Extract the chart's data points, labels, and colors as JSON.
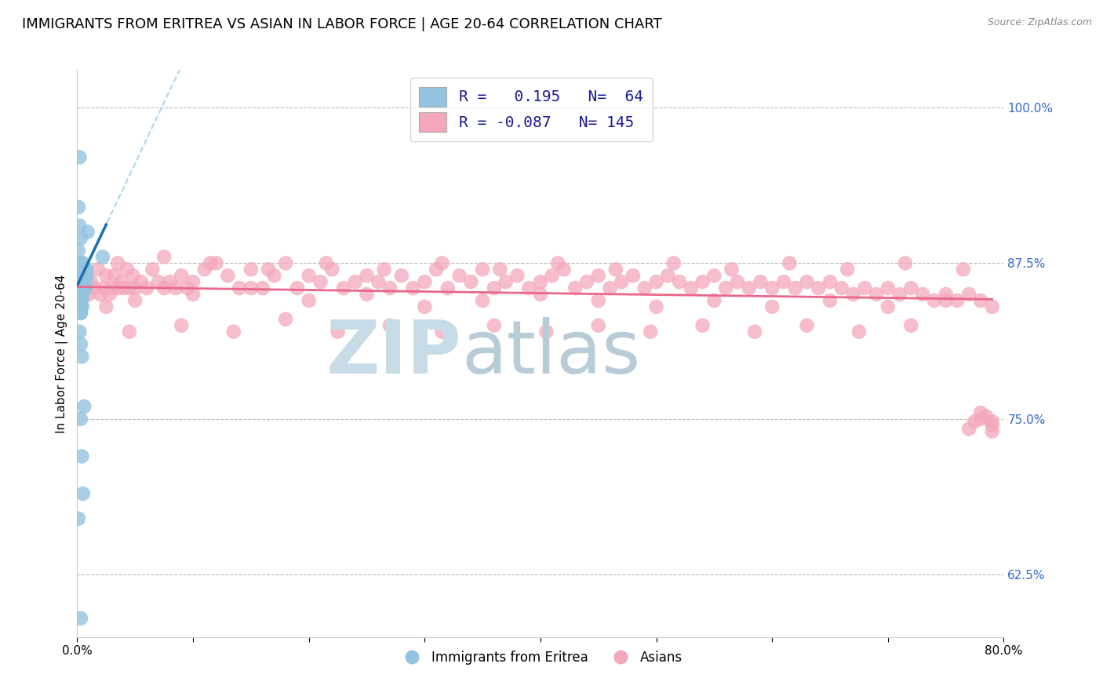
{
  "title": "IMMIGRANTS FROM ERITREA VS ASIAN IN LABOR FORCE | AGE 20-64 CORRELATION CHART",
  "source": "Source: ZipAtlas.com",
  "ylabel": "In Labor Force | Age 20-64",
  "xlim": [
    0.0,
    0.8
  ],
  "ylim": [
    0.575,
    1.03
  ],
  "yticks": [
    0.625,
    0.75,
    0.875,
    1.0
  ],
  "ytick_labels": [
    "62.5%",
    "75.0%",
    "87.5%",
    "100.0%"
  ],
  "xticks": [
    0.0,
    0.1,
    0.2,
    0.3,
    0.4,
    0.5,
    0.6,
    0.7,
    0.8
  ],
  "xtick_labels": [
    "0.0%",
    "",
    "",
    "",
    "",
    "",
    "",
    "",
    "80.0%"
  ],
  "legend_R1": "0.195",
  "legend_N1": "64",
  "legend_R2": "-0.087",
  "legend_N2": "145",
  "blue_color": "#93c4e0",
  "pink_color": "#f4a7bb",
  "blue_line_color": "#1a6faf",
  "pink_line_color": "#e8678a",
  "watermark_zip_color": "#c8dce8",
  "watermark_atlas_color": "#b8ccd8",
  "title_fontsize": 13,
  "axis_label_fontsize": 11,
  "tick_fontsize": 11,
  "ytick_color": "#3366cc",
  "blue_scatter_x": [
    0.001,
    0.001,
    0.001,
    0.001,
    0.002,
    0.002,
    0.002,
    0.002,
    0.002,
    0.003,
    0.003,
    0.003,
    0.003,
    0.003,
    0.003,
    0.003,
    0.004,
    0.004,
    0.004,
    0.004,
    0.004,
    0.004,
    0.005,
    0.005,
    0.005,
    0.005,
    0.006,
    0.006,
    0.006,
    0.006,
    0.007,
    0.007,
    0.007,
    0.008,
    0.008,
    0.003,
    0.002,
    0.001,
    0.004,
    0.003,
    0.002,
    0.003,
    0.004,
    0.003,
    0.005,
    0.004,
    0.003,
    0.002,
    0.004,
    0.005,
    0.003,
    0.004,
    0.005,
    0.006,
    0.004,
    0.003,
    0.022,
    0.009,
    0.003,
    0.004,
    0.002,
    0.003,
    0.001,
    0.002
  ],
  "blue_scatter_y": [
    0.865,
    0.875,
    0.885,
    0.87,
    0.86,
    0.875,
    0.865,
    0.87,
    0.85,
    0.865,
    0.875,
    0.855,
    0.865,
    0.87,
    0.86,
    0.855,
    0.865,
    0.87,
    0.86,
    0.875,
    0.85,
    0.865,
    0.875,
    0.86,
    0.855,
    0.87,
    0.86,
    0.87,
    0.855,
    0.865,
    0.87,
    0.855,
    0.86,
    0.865,
    0.87,
    0.895,
    0.905,
    0.92,
    0.84,
    0.835,
    0.84,
    0.85,
    0.845,
    0.855,
    0.85,
    0.86,
    0.875,
    0.865,
    0.87,
    0.855,
    0.75,
    0.72,
    0.69,
    0.76,
    0.8,
    0.81,
    0.88,
    0.9,
    0.835,
    0.84,
    0.82,
    0.59,
    0.67,
    0.96
  ],
  "pink_scatter_x": [
    0.004,
    0.006,
    0.008,
    0.01,
    0.012,
    0.015,
    0.018,
    0.02,
    0.023,
    0.025,
    0.028,
    0.03,
    0.032,
    0.035,
    0.038,
    0.04,
    0.043,
    0.045,
    0.048,
    0.05,
    0.055,
    0.06,
    0.065,
    0.07,
    0.075,
    0.08,
    0.085,
    0.09,
    0.095,
    0.1,
    0.11,
    0.12,
    0.13,
    0.14,
    0.15,
    0.16,
    0.17,
    0.18,
    0.19,
    0.2,
    0.21,
    0.22,
    0.23,
    0.24,
    0.25,
    0.26,
    0.27,
    0.28,
    0.29,
    0.3,
    0.31,
    0.32,
    0.33,
    0.34,
    0.35,
    0.36,
    0.37,
    0.38,
    0.39,
    0.4,
    0.41,
    0.42,
    0.43,
    0.44,
    0.45,
    0.46,
    0.47,
    0.48,
    0.49,
    0.5,
    0.51,
    0.52,
    0.53,
    0.54,
    0.55,
    0.56,
    0.57,
    0.58,
    0.59,
    0.6,
    0.61,
    0.62,
    0.63,
    0.64,
    0.65,
    0.66,
    0.67,
    0.68,
    0.69,
    0.7,
    0.71,
    0.72,
    0.73,
    0.74,
    0.75,
    0.76,
    0.77,
    0.78,
    0.79,
    0.025,
    0.05,
    0.1,
    0.15,
    0.2,
    0.25,
    0.3,
    0.35,
    0.4,
    0.45,
    0.5,
    0.55,
    0.6,
    0.65,
    0.7,
    0.75,
    0.035,
    0.075,
    0.115,
    0.165,
    0.215,
    0.265,
    0.315,
    0.365,
    0.415,
    0.465,
    0.515,
    0.565,
    0.615,
    0.665,
    0.715,
    0.765,
    0.045,
    0.09,
    0.135,
    0.18,
    0.225,
    0.27,
    0.315,
    0.36,
    0.405,
    0.45,
    0.495,
    0.54,
    0.585,
    0.63,
    0.675,
    0.72,
    0.78,
    0.79,
    0.78,
    0.79,
    0.79,
    0.785,
    0.775,
    0.77
  ],
  "pink_scatter_y": [
    0.86,
    0.855,
    0.865,
    0.85,
    0.86,
    0.855,
    0.87,
    0.85,
    0.855,
    0.865,
    0.85,
    0.855,
    0.865,
    0.855,
    0.86,
    0.855,
    0.87,
    0.855,
    0.865,
    0.855,
    0.86,
    0.855,
    0.87,
    0.86,
    0.855,
    0.86,
    0.855,
    0.865,
    0.855,
    0.86,
    0.87,
    0.875,
    0.865,
    0.855,
    0.87,
    0.855,
    0.865,
    0.875,
    0.855,
    0.865,
    0.86,
    0.87,
    0.855,
    0.86,
    0.865,
    0.86,
    0.855,
    0.865,
    0.855,
    0.86,
    0.87,
    0.855,
    0.865,
    0.86,
    0.87,
    0.855,
    0.86,
    0.865,
    0.855,
    0.86,
    0.865,
    0.87,
    0.855,
    0.86,
    0.865,
    0.855,
    0.86,
    0.865,
    0.855,
    0.86,
    0.865,
    0.86,
    0.855,
    0.86,
    0.865,
    0.855,
    0.86,
    0.855,
    0.86,
    0.855,
    0.86,
    0.855,
    0.86,
    0.855,
    0.86,
    0.855,
    0.85,
    0.855,
    0.85,
    0.855,
    0.85,
    0.855,
    0.85,
    0.845,
    0.85,
    0.845,
    0.85,
    0.845,
    0.84,
    0.84,
    0.845,
    0.85,
    0.855,
    0.845,
    0.85,
    0.84,
    0.845,
    0.85,
    0.845,
    0.84,
    0.845,
    0.84,
    0.845,
    0.84,
    0.845,
    0.875,
    0.88,
    0.875,
    0.87,
    0.875,
    0.87,
    0.875,
    0.87,
    0.875,
    0.87,
    0.875,
    0.87,
    0.875,
    0.87,
    0.875,
    0.87,
    0.82,
    0.825,
    0.82,
    0.83,
    0.82,
    0.825,
    0.82,
    0.825,
    0.82,
    0.825,
    0.82,
    0.825,
    0.82,
    0.825,
    0.82,
    0.825,
    0.75,
    0.745,
    0.755,
    0.748,
    0.74,
    0.752,
    0.748,
    0.742
  ]
}
